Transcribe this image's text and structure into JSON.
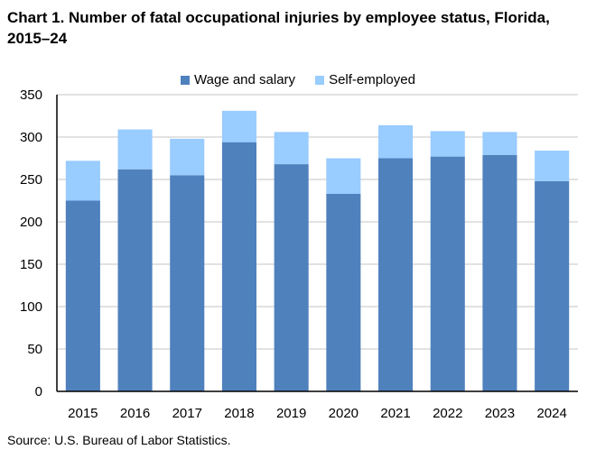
{
  "title": "Chart 1. Number of fatal occupational injuries by employee status, Florida, 2015–24",
  "source": "Source: U.S. Bureau of Labor Statistics.",
  "chart_data": {
    "type": "bar",
    "stacked": true,
    "title": "Chart 1. Number of fatal occupational injuries by employee status, Florida, 2015–24",
    "xlabel": "",
    "ylabel": "",
    "ylim": [
      0,
      350
    ],
    "yticks": [
      "0",
      "50",
      "100",
      "150",
      "200",
      "250",
      "300",
      "350"
    ],
    "grid": true,
    "legend_position": "top",
    "categories": [
      "2015",
      "2016",
      "2017",
      "2018",
      "2019",
      "2020",
      "2021",
      "2022",
      "2023",
      "2024"
    ],
    "series": [
      {
        "name": "Wage and salary",
        "color": "#4f81bd",
        "values": [
          225,
          262,
          255,
          294,
          268,
          233,
          275,
          277,
          279,
          248
        ]
      },
      {
        "name": "Self-employed",
        "color": "#99ccff",
        "values": [
          47,
          47,
          43,
          37,
          38,
          42,
          39,
          30,
          27,
          36
        ]
      }
    ]
  }
}
